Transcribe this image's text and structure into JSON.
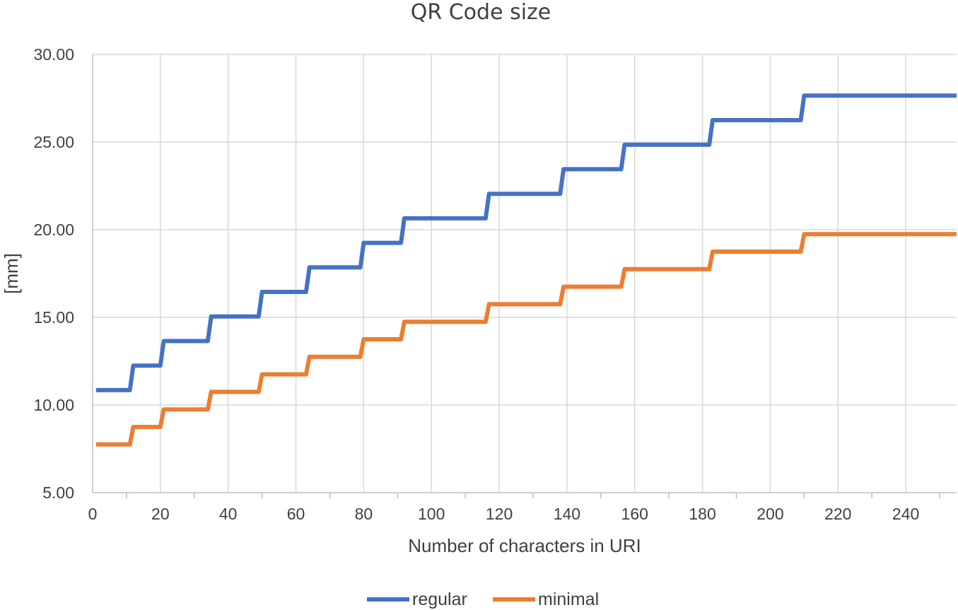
{
  "chart_data": {
    "type": "line",
    "title": "QR Code size",
    "xlabel": "Number of characters in URI",
    "ylabel": "[mm]",
    "xlim": [
      0,
      255
    ],
    "ylim": [
      5,
      30
    ],
    "x_ticks": [
      0,
      20,
      40,
      60,
      80,
      100,
      120,
      140,
      160,
      180,
      200,
      220,
      240
    ],
    "y_ticks": [
      5,
      10,
      15,
      20,
      25,
      30
    ],
    "y_tick_labels": [
      "5.00",
      "10.00",
      "15.00",
      "20.00",
      "25.00",
      "30.00"
    ],
    "grid": true,
    "legend_position": "bottom",
    "series": [
      {
        "name": "regular",
        "color": "#4472C4",
        "steps": [
          {
            "x_start": 1,
            "y": 10.85
          },
          {
            "x_start": 12,
            "y": 12.25
          },
          {
            "x_start": 21,
            "y": 13.65
          },
          {
            "x_start": 35,
            "y": 15.05
          },
          {
            "x_start": 50,
            "y": 16.45
          },
          {
            "x_start": 64,
            "y": 17.85
          },
          {
            "x_start": 80,
            "y": 19.25
          },
          {
            "x_start": 92,
            "y": 20.65
          },
          {
            "x_start": 117,
            "y": 22.05
          },
          {
            "x_start": 139,
            "y": 23.45
          },
          {
            "x_start": 157,
            "y": 24.85
          },
          {
            "x_start": 183,
            "y": 26.25
          },
          {
            "x_start": 210,
            "y": 27.65
          }
        ],
        "x_end": 255
      },
      {
        "name": "minimal",
        "color": "#ED7D31",
        "steps": [
          {
            "x_start": 1,
            "y": 7.75
          },
          {
            "x_start": 12,
            "y": 8.75
          },
          {
            "x_start": 21,
            "y": 9.75
          },
          {
            "x_start": 35,
            "y": 10.75
          },
          {
            "x_start": 50,
            "y": 11.75
          },
          {
            "x_start": 64,
            "y": 12.75
          },
          {
            "x_start": 80,
            "y": 13.75
          },
          {
            "x_start": 92,
            "y": 14.75
          },
          {
            "x_start": 117,
            "y": 15.75
          },
          {
            "x_start": 139,
            "y": 16.75
          },
          {
            "x_start": 157,
            "y": 17.75
          },
          {
            "x_start": 183,
            "y": 18.75
          },
          {
            "x_start": 210,
            "y": 19.75
          }
        ],
        "x_end": 255
      }
    ]
  }
}
